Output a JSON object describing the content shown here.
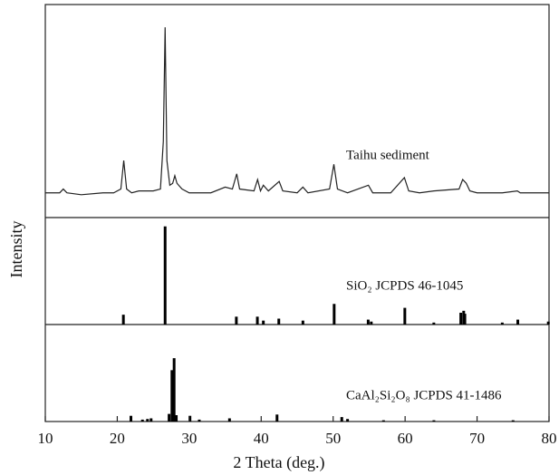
{
  "chart_data": [
    {
      "type": "line",
      "annotation": "Taihu sediment",
      "color": "#222222",
      "xlim": [
        10,
        80
      ],
      "ylim": [
        0,
        112
      ],
      "x": [
        10,
        12,
        12.5,
        13,
        15,
        18,
        19.5,
        20.5,
        20.9,
        21.3,
        22,
        23,
        24,
        25,
        26,
        26.4,
        26.65,
        26.9,
        27.3,
        27.7,
        28,
        28.3,
        29,
        30,
        31,
        33,
        35,
        36,
        36.6,
        37,
        39,
        39.5,
        39.9,
        40.3,
        41,
        42.5,
        43,
        45,
        45.8,
        46.5,
        49.5,
        50.1,
        50.6,
        52,
        54.9,
        55.5,
        58,
        59.9,
        60.5,
        62,
        64,
        67.5,
        68,
        68.5,
        69,
        70,
        73.5,
        75.6,
        76,
        80
      ],
      "values": [
        13,
        13,
        15,
        13,
        12,
        13,
        13,
        15,
        30,
        15,
        13,
        14,
        14,
        14,
        15,
        40,
        100,
        30,
        17,
        18,
        22,
        18,
        15,
        13,
        13,
        13,
        16,
        15,
        23,
        15,
        14,
        20,
        14,
        17,
        14,
        19,
        14,
        13,
        16,
        13,
        15,
        28,
        15,
        13,
        17,
        13,
        13,
        21,
        14,
        13,
        14,
        15,
        20,
        18,
        14,
        13,
        13,
        14,
        13,
        13
      ]
    },
    {
      "type": "stick",
      "annotation": "SiO₂  JCPDS 46-1045",
      "ylabel": "Intensity",
      "color": "#000000",
      "xlim": [
        10,
        80
      ],
      "ylim": [
        0,
        109
      ],
      "x": [
        20.85,
        26.65,
        36.55,
        39.47,
        40.3,
        42.45,
        45.8,
        50.14,
        54.87,
        55.3,
        59.96,
        63.99,
        67.74,
        68.14,
        68.3,
        73.5,
        75.66,
        79.9
      ],
      "values": [
        10,
        100,
        8,
        8,
        4,
        6,
        4,
        21,
        5,
        3,
        17,
        2,
        12,
        14,
        11,
        2,
        5,
        3
      ]
    },
    {
      "type": "stick",
      "annotation": "CaAl₂Si₂O₈  JCPDS 41-1486",
      "xlabel": "2 Theta (deg.)",
      "color": "#000000",
      "xlim": [
        10,
        80
      ],
      "ylim": [
        0,
        153
      ],
      "xticks": [
        10,
        20,
        30,
        40,
        50,
        60,
        70,
        80
      ],
      "x": [
        21.9,
        23.5,
        24.2,
        24.7,
        27.2,
        27.6,
        27.9,
        28.2,
        30.1,
        31.4,
        35.6,
        42.2,
        51.2,
        52,
        57,
        64,
        75
      ],
      "values": [
        9,
        3,
        4,
        5,
        12,
        81,
        100,
        10,
        9,
        3,
        5,
        11,
        7,
        4,
        2,
        2,
        2
      ]
    }
  ]
}
